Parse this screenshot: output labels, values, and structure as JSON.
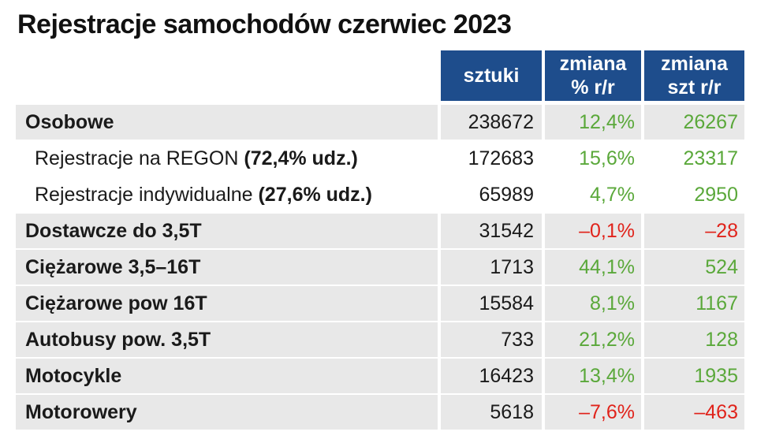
{
  "title": "Rejestracje samochodów czerwiec 2023",
  "headers": {
    "sztuki": "sztuki",
    "zmiana_pct_line1": "zmiana",
    "zmiana_pct_line2": "% r/r",
    "zmiana_szt_line1": "zmiana",
    "zmiana_szt_line2": "szt r/r"
  },
  "colors": {
    "header_bg": "#1e4d8c",
    "positive": "#5aa83a",
    "negative": "#e0231b",
    "row_gray": "#e8e8e8"
  },
  "rows": [
    {
      "label": "Osobowe",
      "note": "",
      "sztuki": "238672",
      "pct": "12,4%",
      "szt": "26267",
      "trend": "positive"
    },
    {
      "label": "Rejestracje na REGON ",
      "note": "(72,4% udz.)",
      "sztuki": "172683",
      "pct": "15,6%",
      "szt": "23317",
      "trend": "positive"
    },
    {
      "label": "Rejestracje indywidualne ",
      "note": "(27,6% udz.)",
      "sztuki": "65989",
      "pct": "4,7%",
      "szt": "2950",
      "trend": "positive"
    },
    {
      "label": "Dostawcze do 3,5T",
      "note": "",
      "sztuki": "31542",
      "pct": "–0,1%",
      "szt": "–28",
      "trend": "negative"
    },
    {
      "label": "Ciężarowe 3,5–16T",
      "note": "",
      "sztuki": "1713",
      "pct": "44,1%",
      "szt": "524",
      "trend": "positive"
    },
    {
      "label": "Ciężarowe pow 16T",
      "note": "",
      "sztuki": "15584",
      "pct": "8,1%",
      "szt": "1167",
      "trend": "positive"
    },
    {
      "label": "Autobusy pow. 3,5T",
      "note": "",
      "sztuki": "733",
      "pct": "21,2%",
      "szt": "128",
      "trend": "positive"
    },
    {
      "label": "Motocykle",
      "note": "",
      "sztuki": "16423",
      "pct": "13,4%",
      "szt": "1935",
      "trend": "positive"
    },
    {
      "label": "Motorowery",
      "note": "",
      "sztuki": "5618",
      "pct": "–7,6%",
      "szt": "–463",
      "trend": "negative"
    }
  ]
}
